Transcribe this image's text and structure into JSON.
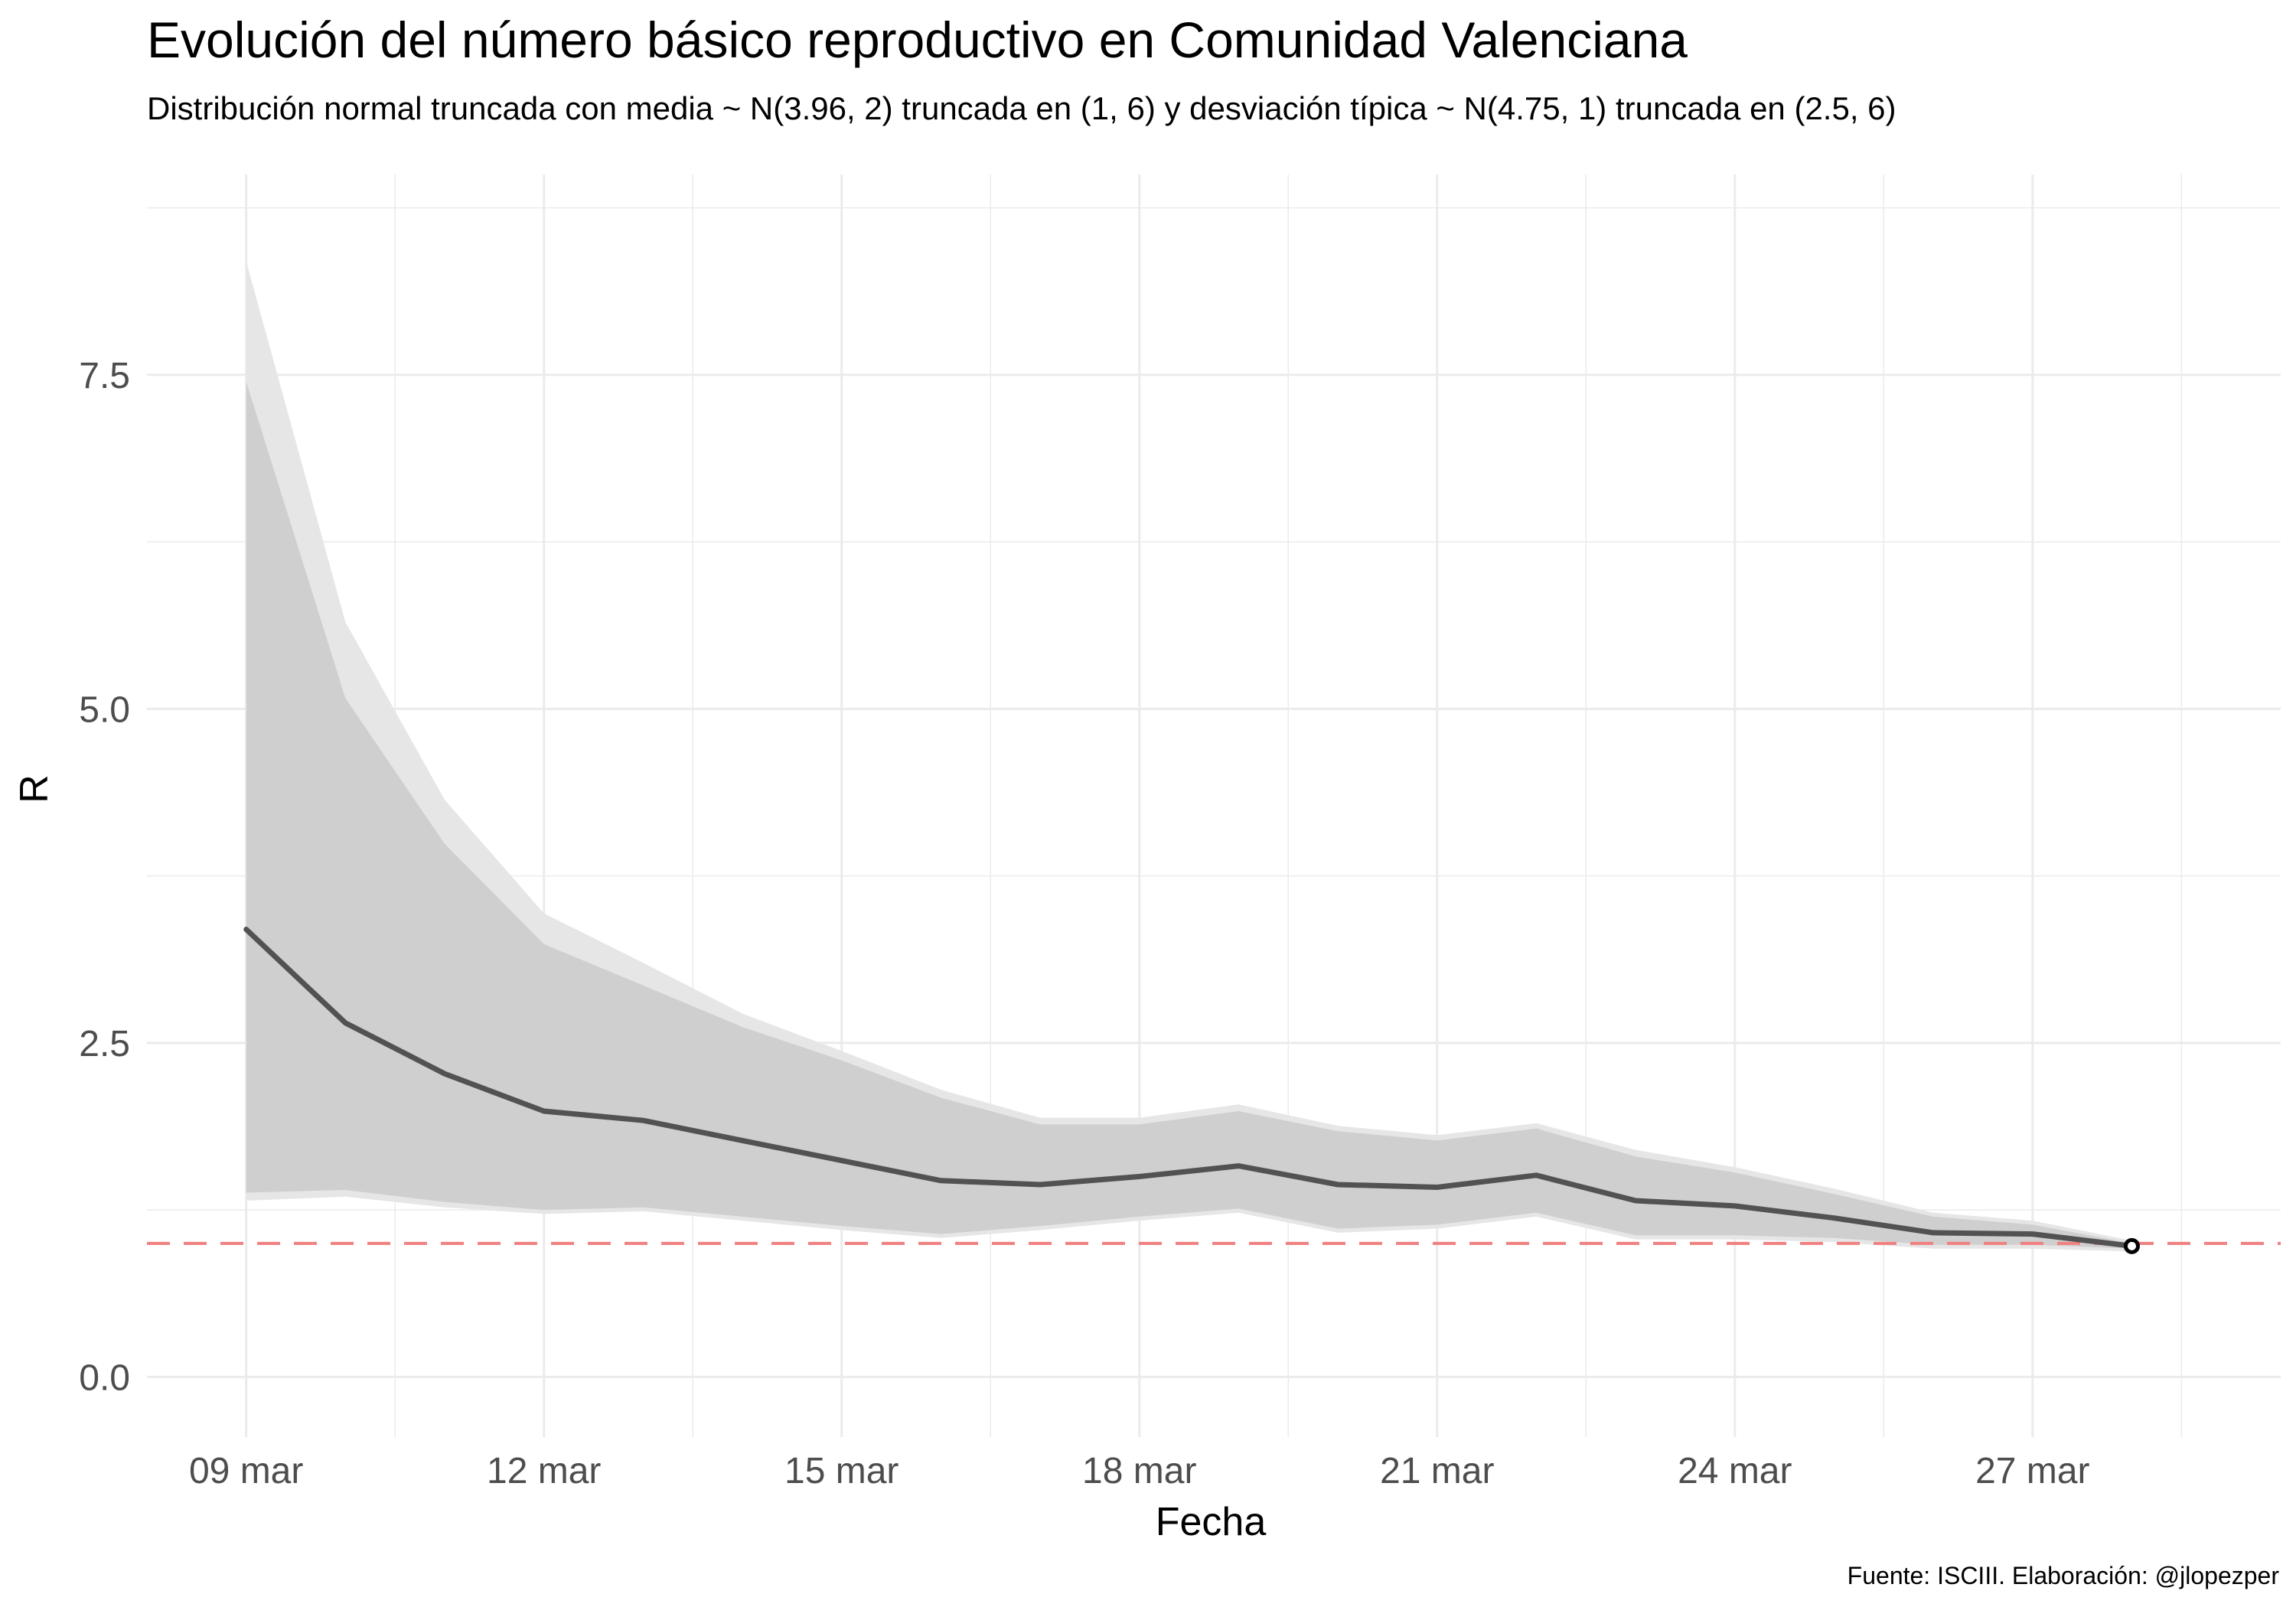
{
  "chart_data": {
    "type": "line",
    "title": "Evolución del número básico reproductivo en Comunidad Valenciana",
    "subtitle": "Distribución normal truncada con media ~ N(3.96, 2) truncada en (1, 6) y desviación típica ~ N(4.75, 1) truncada en (2.5, 6)",
    "xlabel": "Fecha",
    "ylabel": "R",
    "caption": "Fuente: ISCIII. Elaboración: @jlopezper",
    "x_tick_labels": [
      "09 mar",
      "12 mar",
      "15 mar",
      "18 mar",
      "21 mar",
      "24 mar",
      "27 mar"
    ],
    "y_tick_labels": [
      "0.0",
      "2.5",
      "5.0",
      "7.5"
    ],
    "y_ticks": [
      0,
      2.5,
      5,
      7.5
    ],
    "ylim": [
      -0.45,
      9.0
    ],
    "xlim_days": [
      "2020-03-08",
      "2020-03-29.5"
    ],
    "grid": true,
    "colors": {
      "line": "#525252",
      "outer_band": "#e6e6e6",
      "inner_band": "#cfcfcf",
      "reference_line": "#f08080",
      "grid": "#ebebeb"
    },
    "reference_line": {
      "y": 1,
      "style": "dashed"
    },
    "x": [
      "2020-03-09",
      "2020-03-10",
      "2020-03-11",
      "2020-03-12",
      "2020-03-13",
      "2020-03-14",
      "2020-03-15",
      "2020-03-16",
      "2020-03-17",
      "2020-03-18",
      "2020-03-19",
      "2020-03-20",
      "2020-03-21",
      "2020-03-22",
      "2020-03-23",
      "2020-03-24",
      "2020-03-25",
      "2020-03-26",
      "2020-03-27",
      "2020-03-28"
    ],
    "series": [
      {
        "values": [
          3.35,
          2.65,
          2.27,
          1.99,
          1.92,
          1.77,
          1.62,
          1.47,
          1.44,
          1.5,
          1.58,
          1.44,
          1.42,
          1.51,
          1.32,
          1.28,
          1.19,
          1.08,
          1.07,
          0.98
        ]
      }
    ],
    "band_outer_upper": [
      8.35,
      5.65,
      4.32,
      3.47,
      3.1,
      2.72,
      2.44,
      2.15,
      1.94,
      1.94,
      2.04,
      1.88,
      1.81,
      1.9,
      1.7,
      1.57,
      1.41,
      1.23,
      1.17,
      1.02
    ],
    "band_outer_lower": [
      1.32,
      1.35,
      1.27,
      1.22,
      1.24,
      1.17,
      1.1,
      1.04,
      1.1,
      1.17,
      1.23,
      1.08,
      1.11,
      1.2,
      1.03,
      1.03,
      1.01,
      0.96,
      0.96,
      0.94
    ],
    "band_inner_upper": [
      7.45,
      5.08,
      3.99,
      3.24,
      2.93,
      2.62,
      2.37,
      2.09,
      1.89,
      1.89,
      1.99,
      1.84,
      1.77,
      1.86,
      1.65,
      1.53,
      1.37,
      1.2,
      1.14,
      1.0
    ],
    "band_inner_lower": [
      1.38,
      1.4,
      1.31,
      1.25,
      1.27,
      1.2,
      1.13,
      1.07,
      1.13,
      1.2,
      1.26,
      1.11,
      1.14,
      1.23,
      1.06,
      1.06,
      1.04,
      0.99,
      0.99,
      0.96
    ],
    "last_point_marker": {
      "x": "2020-03-28",
      "y": 0.98
    }
  }
}
